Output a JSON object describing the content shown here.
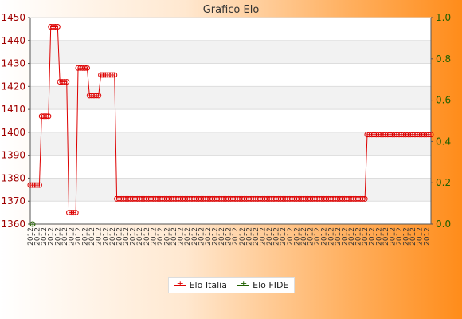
{
  "chart_data": {
    "type": "line",
    "title": "Grafico Elo",
    "y_left": {
      "min": 1360,
      "max": 1450,
      "ticks": [
        "1360",
        "1370",
        "1380",
        "1390",
        "1400",
        "1410",
        "1420",
        "1430",
        "1440",
        "1450"
      ]
    },
    "y_right": {
      "min": 0.0,
      "max": 1.0,
      "ticks": [
        "0.0",
        "0.2",
        "0.4",
        "0.6",
        "0.8",
        "1.0"
      ]
    },
    "grid": "horizontal bands",
    "legend": "bottom-center",
    "x_label_prefix": "2012",
    "series": [
      {
        "name": "Elo Italia",
        "color": "#dd0000",
        "axis": "left",
        "values": [
          1377,
          1377,
          1377,
          1377,
          1377,
          1407,
          1407,
          1407,
          1407,
          1446,
          1446,
          1446,
          1446,
          1422,
          1422,
          1422,
          1422,
          1365,
          1365,
          1365,
          1365,
          1428,
          1428,
          1428,
          1428,
          1428,
          1416,
          1416,
          1416,
          1416,
          1416,
          1425,
          1425,
          1425,
          1425,
          1425,
          1425,
          1425,
          1371,
          1371,
          1371,
          1371,
          1371,
          1371,
          1371,
          1371,
          1371,
          1371,
          1371,
          1371,
          1371,
          1371,
          1371,
          1371,
          1371,
          1371,
          1371,
          1371,
          1371,
          1371,
          1371,
          1371,
          1371,
          1371,
          1371,
          1371,
          1371,
          1371,
          1371,
          1371,
          1371,
          1371,
          1371,
          1371,
          1371,
          1371,
          1371,
          1371,
          1371,
          1371,
          1371,
          1371,
          1371,
          1371,
          1371,
          1371,
          1371,
          1371,
          1371,
          1371,
          1371,
          1371,
          1371,
          1371,
          1371,
          1371,
          1371,
          1371,
          1371,
          1371,
          1371,
          1371,
          1371,
          1371,
          1371,
          1371,
          1371,
          1371,
          1371,
          1371,
          1371,
          1371,
          1371,
          1371,
          1371,
          1371,
          1371,
          1371,
          1371,
          1371,
          1371,
          1371,
          1371,
          1371,
          1371,
          1371,
          1371,
          1371,
          1371,
          1371,
          1371,
          1371,
          1371,
          1371,
          1371,
          1371,
          1371,
          1371,
          1371,
          1371,
          1371,
          1371,
          1371,
          1371,
          1371,
          1371,
          1371,
          1371,
          1399,
          1399,
          1399,
          1399,
          1399,
          1399,
          1399,
          1399,
          1399,
          1399,
          1399,
          1399,
          1399,
          1399,
          1399,
          1399,
          1399,
          1399,
          1399,
          1399,
          1399,
          1399,
          1399,
          1399,
          1399,
          1399,
          1399,
          1399,
          1399
        ]
      },
      {
        "name": "Elo FIDE",
        "color": "#206000",
        "axis": "right",
        "values": [
          0
        ]
      }
    ]
  }
}
